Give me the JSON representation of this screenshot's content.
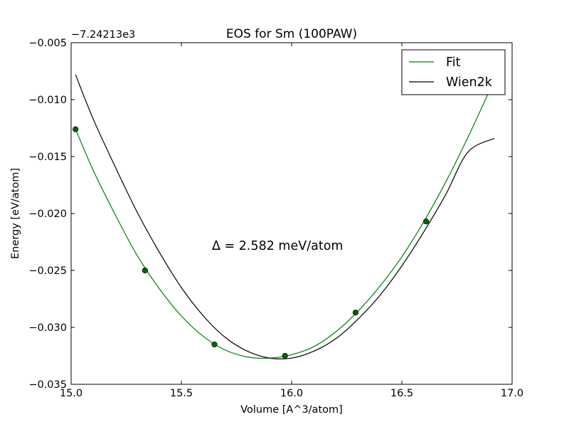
{
  "chart_data": {
    "type": "line",
    "title": "EOS for Sm (100PAW)",
    "xlabel": "Volume [A^3/atom]",
    "ylabel": "Energy [eV/atom]",
    "y_offset_label": "−7.24213e3",
    "xlim": [
      15.0,
      17.0
    ],
    "ylim": [
      -0.035,
      -0.005
    ],
    "xticks": [
      15.0,
      15.5,
      16.0,
      16.5,
      17.0
    ],
    "xtick_labels": [
      "15.0",
      "15.5",
      "16.0",
      "16.5",
      "17.0"
    ],
    "yticks": [
      -0.035,
      -0.03,
      -0.025,
      -0.02,
      -0.015,
      -0.01,
      -0.005
    ],
    "ytick_labels": [
      "−0.035",
      "−0.030",
      "−0.025",
      "−0.020",
      "−0.015",
      "−0.010",
      "−0.005"
    ],
    "grid": false,
    "legend_position": "top-right",
    "annotation": "Δ = 2.582 meV/atom",
    "series": [
      {
        "name": "Fit",
        "color": "#008000",
        "style": "line",
        "x": [
          15.02,
          15.1,
          15.2,
          15.3,
          15.4,
          15.5,
          15.6,
          15.7,
          15.8,
          15.9,
          16.0,
          16.1,
          16.2,
          16.3,
          16.4,
          16.5,
          16.6,
          16.7,
          16.8,
          16.9
        ],
        "y": [
          -0.0126,
          -0.0162,
          -0.0201,
          -0.0237,
          -0.0266,
          -0.029,
          -0.0308,
          -0.032,
          -0.0326,
          -0.0327,
          -0.0324,
          -0.0317,
          -0.0304,
          -0.0286,
          -0.0264,
          -0.0238,
          -0.0207,
          -0.0172,
          -0.0133,
          -0.0091
        ]
      },
      {
        "name": "",
        "color": "#006400",
        "style": "points",
        "x": [
          15.02,
          15.335,
          15.65,
          15.97,
          16.29,
          16.61
        ],
        "y": [
          -0.0126,
          -0.025,
          -0.0315,
          -0.0325,
          -0.0287,
          -0.0207
        ]
      },
      {
        "name": "Wien2k",
        "color": "#000000",
        "style": "line",
        "x": [
          15.02,
          15.1,
          15.2,
          15.3,
          15.4,
          15.5,
          15.6,
          15.7,
          15.8,
          15.9,
          16.0,
          16.1,
          16.2,
          16.3,
          16.4,
          16.5,
          16.6,
          16.7,
          16.8,
          16.92
        ],
        "y": [
          -0.0078,
          -0.0117,
          -0.0159,
          -0.0199,
          -0.0234,
          -0.0265,
          -0.029,
          -0.0309,
          -0.0321,
          -0.0327,
          -0.0327,
          -0.0321,
          -0.031,
          -0.0293,
          -0.0272,
          -0.0246,
          -0.0216,
          -0.0183,
          -0.0146,
          -0.0134
        ]
      }
    ]
  }
}
